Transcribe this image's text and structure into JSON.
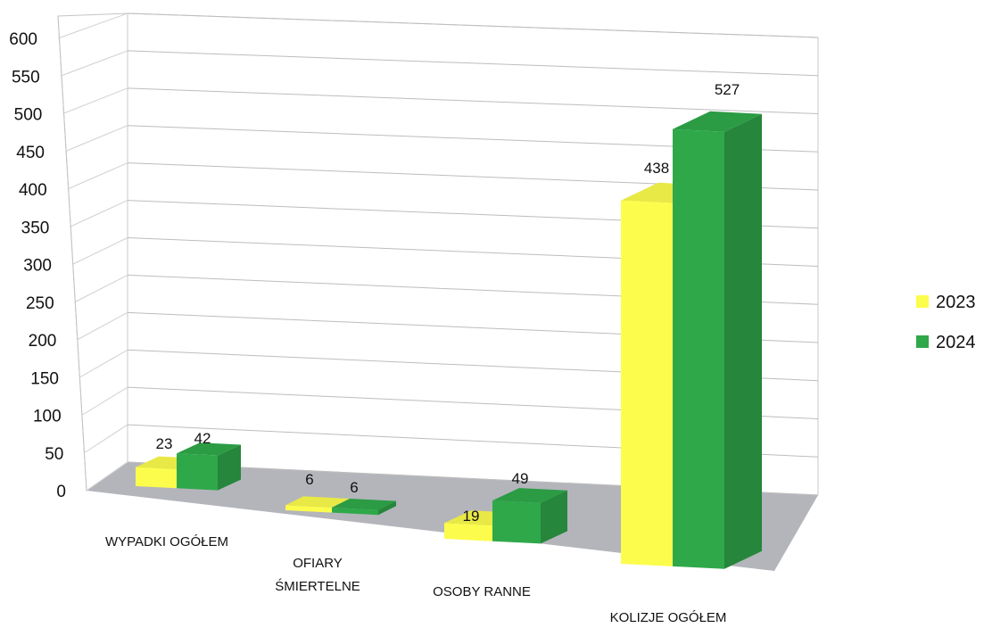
{
  "chart_data": {
    "type": "bar",
    "categories": [
      "WYPADKI OGÓŁEM",
      "OFIARY ŚMIERTELNE",
      "OSOBY RANNE",
      "KOLIZJE OGÓŁEM"
    ],
    "series": [
      {
        "name": "2023",
        "values": [
          23,
          6,
          19,
          438
        ],
        "color": "#fcfc4c"
      },
      {
        "name": "2024",
        "values": [
          42,
          6,
          49,
          527
        ],
        "color": "#2fa84a"
      }
    ],
    "y_ticks": [
      "0",
      "50",
      "100",
      "150",
      "200",
      "250",
      "300",
      "350",
      "400",
      "450",
      "500",
      "550",
      "600"
    ],
    "ylim": [
      0,
      600
    ],
    "grid": true,
    "legend_position": "right",
    "style": "3d-perspective"
  }
}
